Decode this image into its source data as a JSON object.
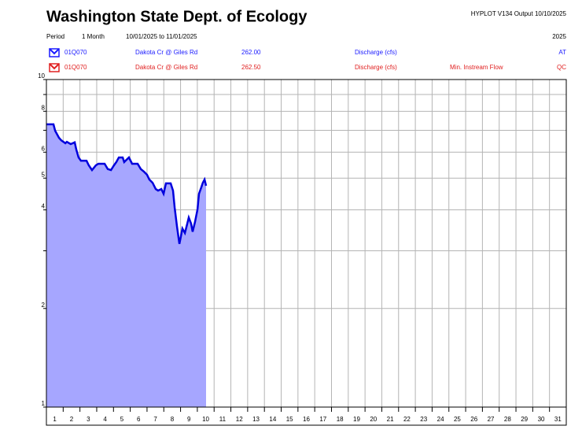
{
  "chart_data": {
    "type": "area",
    "title": "Washington State Dept. of Ecology",
    "output_note": "HYPLOT V134  Output 10/10/2025",
    "period_label": "Period",
    "period": "1 Month",
    "date_range": "10/01/2025  to  11/01/2025",
    "year": "2025",
    "legend": [
      {
        "code": "01Q070",
        "station": "Dakota Cr @ Giles Rd",
        "number": "262.00",
        "parameter": "Discharge (cfs)",
        "flag": "AT",
        "color": "#1a1aff"
      },
      {
        "code": "01Q070",
        "station": "Dakota Cr @ Giles Rd",
        "number": "262.50",
        "parameter": "Discharge (cfs)",
        "note": "Min. Instream Flow",
        "flag": "QC",
        "color": "#e02020"
      }
    ],
    "series": [
      {
        "color": "#0000dd",
        "fill": "#a6a6ff",
        "x": [
          1.0,
          1.42,
          1.52,
          1.75,
          1.89,
          2.13,
          2.22,
          2.45,
          2.69,
          2.78,
          2.92,
          3.06,
          3.39,
          3.53,
          3.72,
          3.95,
          4.1,
          4.47,
          4.66,
          4.85,
          5.03,
          5.17,
          5.32,
          5.55,
          5.64,
          5.92,
          6.11,
          6.44,
          6.63,
          6.82,
          7.0,
          7.14,
          7.33,
          7.52,
          7.66,
          7.85,
          7.99,
          8.13,
          8.41,
          8.55,
          8.65,
          8.79,
          8.93,
          9.02,
          9.11,
          9.26,
          9.4,
          9.49,
          9.63,
          9.72,
          9.86,
          10.01,
          10.1,
          10.24,
          10.33,
          10.43,
          10.52
        ],
        "values": [
          7.3,
          7.3,
          6.98,
          6.64,
          6.52,
          6.39,
          6.45,
          6.35,
          6.43,
          6.11,
          5.78,
          5.65,
          5.65,
          5.47,
          5.29,
          5.47,
          5.53,
          5.53,
          5.33,
          5.29,
          5.47,
          5.6,
          5.78,
          5.78,
          5.6,
          5.78,
          5.53,
          5.53,
          5.33,
          5.23,
          5.12,
          4.95,
          4.84,
          4.63,
          4.58,
          4.63,
          4.48,
          4.82,
          4.82,
          4.58,
          4.06,
          3.55,
          3.15,
          3.32,
          3.51,
          3.4,
          3.63,
          3.79,
          3.63,
          3.43,
          3.67,
          4.01,
          4.48,
          4.69,
          4.84,
          4.95,
          4.74
        ]
      }
    ],
    "categories": [
      "1",
      "2",
      "3",
      "4",
      "5",
      "6",
      "7",
      "8",
      "9",
      "10",
      "11",
      "12",
      "13",
      "14",
      "15",
      "16",
      "17",
      "18",
      "19",
      "20",
      "21",
      "22",
      "23",
      "24",
      "25",
      "26",
      "27",
      "28",
      "29",
      "30",
      "31"
    ],
    "xlim": [
      1,
      32
    ],
    "x_gridlines": [
      1,
      2,
      3,
      4,
      5,
      6,
      7,
      8,
      9,
      10,
      11,
      12,
      13,
      14,
      15,
      16,
      17,
      18,
      19,
      20,
      21,
      22,
      23,
      24,
      25,
      26,
      27,
      28,
      29,
      30,
      31,
      32
    ],
    "ylim": [
      1,
      10
    ],
    "yticks": [
      1,
      2,
      4,
      5,
      6,
      8,
      10
    ],
    "y_minor_gridlines": [
      3,
      7,
      9
    ],
    "log_y": true,
    "grid": true
  }
}
